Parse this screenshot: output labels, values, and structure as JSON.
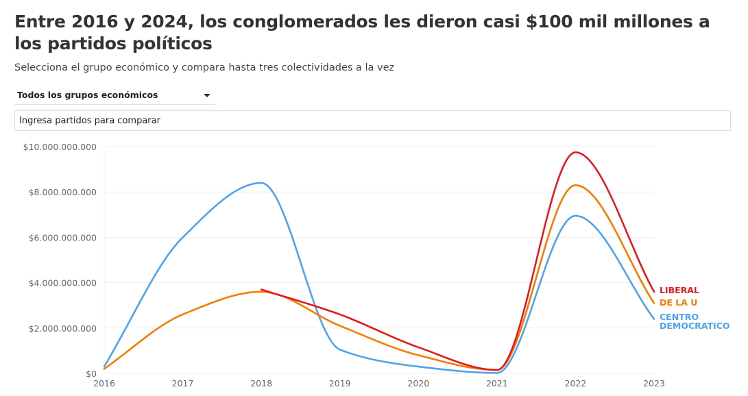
{
  "header": {
    "title": "Entre 2016 y 2024, los conglomerados les dieron casi $100 mil millones a los partidos políticos",
    "subtitle": "Selecciona el grupo económico y compara hasta tres colectividades a la vez"
  },
  "controls": {
    "group_select_value": "Todos los grupos económicos",
    "party_search_placeholder": "Ingresa partidos para comparar"
  },
  "chart_data": {
    "type": "line",
    "title": "",
    "xlabel": "",
    "ylabel": "",
    "x": [
      2016,
      2017,
      2018,
      2019,
      2020,
      2021,
      2022,
      2023
    ],
    "x_tick_labels": [
      "2016",
      "2017",
      "2018",
      "2019",
      "2020",
      "2021",
      "2022",
      "2023"
    ],
    "ylim": [
      0,
      10000000000
    ],
    "y_ticks": [
      0,
      2000000000,
      4000000000,
      6000000000,
      8000000000,
      10000000000
    ],
    "y_tick_labels": [
      "$0",
      "$2.000.000.000",
      "$4.000.000.000",
      "$6.000.000.000",
      "$8.000.000.000",
      "$10.000.000.000"
    ],
    "grid": "horizontal",
    "legend": "inline-right",
    "series": [
      {
        "name": "LIBERAL",
        "color": "#e31a1c",
        "values": [
          null,
          null,
          3700000000,
          2600000000,
          1150000000,
          150000000,
          9750000000,
          3600000000
        ]
      },
      {
        "name": "DE LA U",
        "color": "#f57c00",
        "values": [
          200000000,
          2600000000,
          3600000000,
          2100000000,
          800000000,
          150000000,
          8300000000,
          3100000000
        ]
      },
      {
        "name": "CENTRO DEMOCRATICO",
        "label_lines": [
          "CENTRO",
          "DEMOCRATICO"
        ],
        "color": "#4da3ee",
        "values": [
          300000000,
          6000000000,
          8400000000,
          1050000000,
          300000000,
          20000000,
          6950000000,
          2400000000
        ]
      }
    ]
  }
}
